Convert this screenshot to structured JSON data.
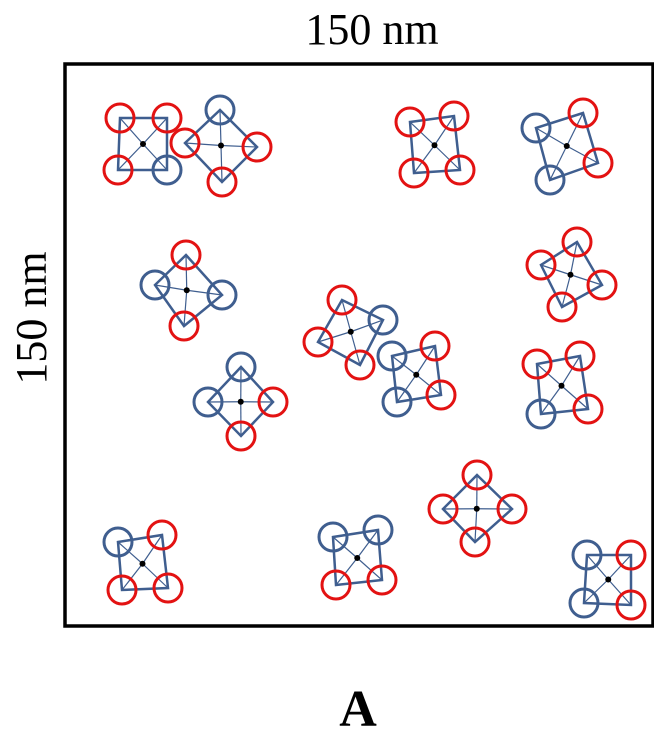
{
  "top_label": "150 nm",
  "side_label": "150 nm",
  "panel_label": "A"
}
